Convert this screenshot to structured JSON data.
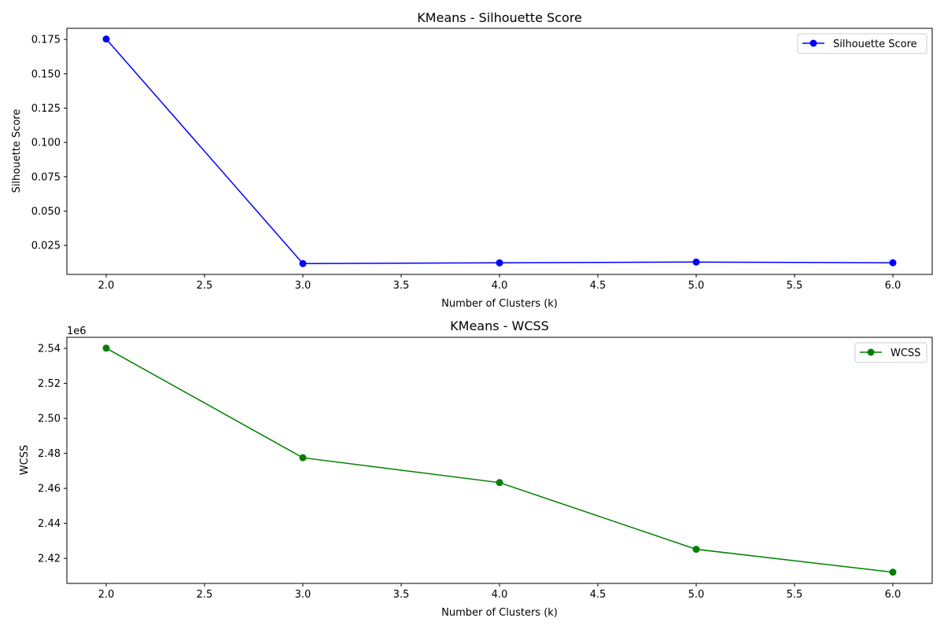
{
  "chart_data": [
    {
      "type": "line",
      "title": "KMeans - Silhouette Score",
      "xlabel": "Number of Clusters (k)",
      "ylabel": "Silhouette Score",
      "x": [
        2,
        3,
        4,
        5,
        6
      ],
      "xlim": [
        1.8,
        6.2
      ],
      "ylim": [
        0.0039,
        0.1831
      ],
      "xticks": [
        2.0,
        2.5,
        3.0,
        3.5,
        4.0,
        4.5,
        5.0,
        5.5,
        6.0
      ],
      "xtick_labels": [
        "2.0",
        "2.5",
        "3.0",
        "3.5",
        "4.0",
        "4.5",
        "5.0",
        "5.5",
        "6.0"
      ],
      "yticks": [
        0.025,
        0.05,
        0.075,
        0.1,
        0.125,
        0.15,
        0.175
      ],
      "ytick_labels": [
        "0.025",
        "0.050",
        "0.075",
        "0.100",
        "0.125",
        "0.150",
        "0.175"
      ],
      "offset_label": "",
      "grid": false,
      "legend_position": "top-right",
      "series": [
        {
          "name": "Silhouette Score",
          "color": "#0000ff",
          "marker": "circle",
          "values": [
            0.1753,
            0.0118,
            0.0123,
            0.0129,
            0.0124
          ]
        }
      ]
    },
    {
      "type": "line",
      "title": "KMeans - WCSS",
      "xlabel": "Number of Clusters (k)",
      "ylabel": "WCSS",
      "x": [
        2,
        3,
        4,
        5,
        6
      ],
      "xlim": [
        1.8,
        6.2
      ],
      "ylim": [
        2405700,
        2546300
      ],
      "xticks": [
        2.0,
        2.5,
        3.0,
        3.5,
        4.0,
        4.5,
        5.0,
        5.5,
        6.0
      ],
      "xtick_labels": [
        "2.0",
        "2.5",
        "3.0",
        "3.5",
        "4.0",
        "4.5",
        "5.0",
        "5.5",
        "6.0"
      ],
      "yticks": [
        2420000,
        2440000,
        2460000,
        2480000,
        2500000,
        2520000,
        2540000
      ],
      "ytick_labels": [
        "2.42",
        "2.44",
        "2.46",
        "2.48",
        "2.50",
        "2.52",
        "2.54"
      ],
      "offset_label": "1e6",
      "grid": false,
      "legend_position": "top-right",
      "series": [
        {
          "name": "WCSS",
          "color": "#008000",
          "marker": "circle",
          "values": [
            2540100,
            2477500,
            2463300,
            2425200,
            2412100
          ]
        }
      ]
    }
  ]
}
